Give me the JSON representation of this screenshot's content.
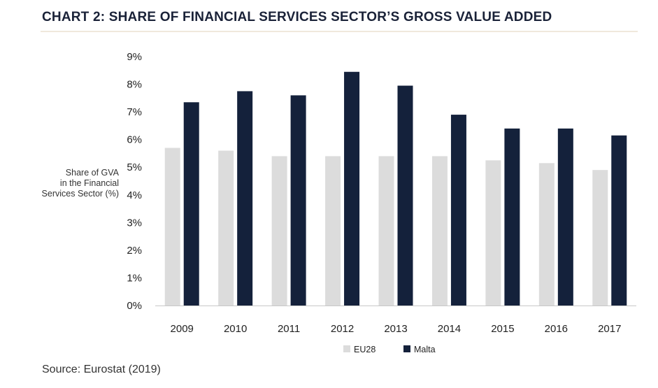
{
  "title": "CHART 2: SHARE OF FINANCIAL SERVICES SECTOR’S GROSS VALUE ADDED",
  "source": "Source: Eurostat (2019)",
  "colors": {
    "EU28": "#dcdcdc",
    "Malta": "#14213b",
    "axis": "#c8c8c8"
  },
  "chart_data": {
    "type": "bar",
    "ylabel": "Share of GVA in the Financial Services Sector (%)",
    "ylabel_lines": [
      "Share of GVA",
      "in the Financial",
      "Services Sector (%)"
    ],
    "categories": [
      "2009",
      "2010",
      "2011",
      "2012",
      "2013",
      "2014",
      "2015",
      "2016",
      "2017"
    ],
    "series": [
      {
        "name": "EU28",
        "values": [
          5.7,
          5.6,
          5.4,
          5.4,
          5.4,
          5.4,
          5.25,
          5.15,
          4.9
        ]
      },
      {
        "name": "Malta",
        "values": [
          7.35,
          7.75,
          7.6,
          8.45,
          7.95,
          6.9,
          6.4,
          6.4,
          6.15
        ]
      }
    ],
    "ylim": [
      0,
      9
    ],
    "yticks": [
      "0%",
      "1%",
      "2%",
      "3%",
      "4%",
      "5%",
      "6%",
      "7%",
      "8%",
      "9%"
    ],
    "grid": false,
    "legend": "bottom"
  }
}
